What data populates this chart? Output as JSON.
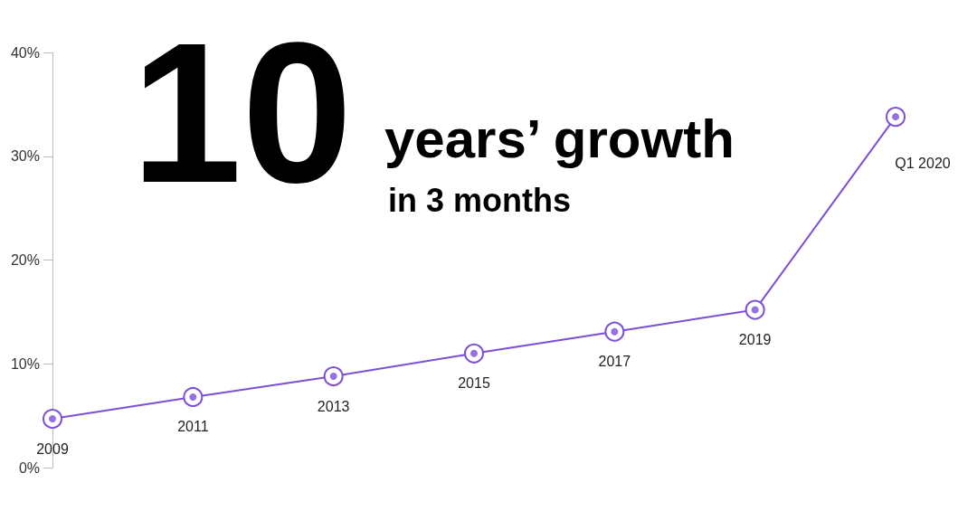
{
  "chart_data": {
    "type": "line",
    "title": "10",
    "subtitle": "years’ growth",
    "annotations": [
      "in 3 months"
    ],
    "categories": [
      "2009",
      "2011",
      "2013",
      "2015",
      "2017",
      "2019",
      "Q1 2020"
    ],
    "values": [
      4.7,
      6.8,
      8.8,
      11.0,
      13.1,
      15.2,
      33.8
    ],
    "color": "#7b4fd8",
    "ylim": [
      0,
      40
    ],
    "yticks": [
      {
        "value": 0,
        "label": "0%"
      },
      {
        "value": 10,
        "label": "10%"
      },
      {
        "value": 20,
        "label": "20%"
      },
      {
        "value": 30,
        "label": "30%"
      },
      {
        "value": 40,
        "label": "40%"
      }
    ],
    "tick_labels": "y",
    "grid": false,
    "marker": "circle",
    "line_style": "solid"
  }
}
